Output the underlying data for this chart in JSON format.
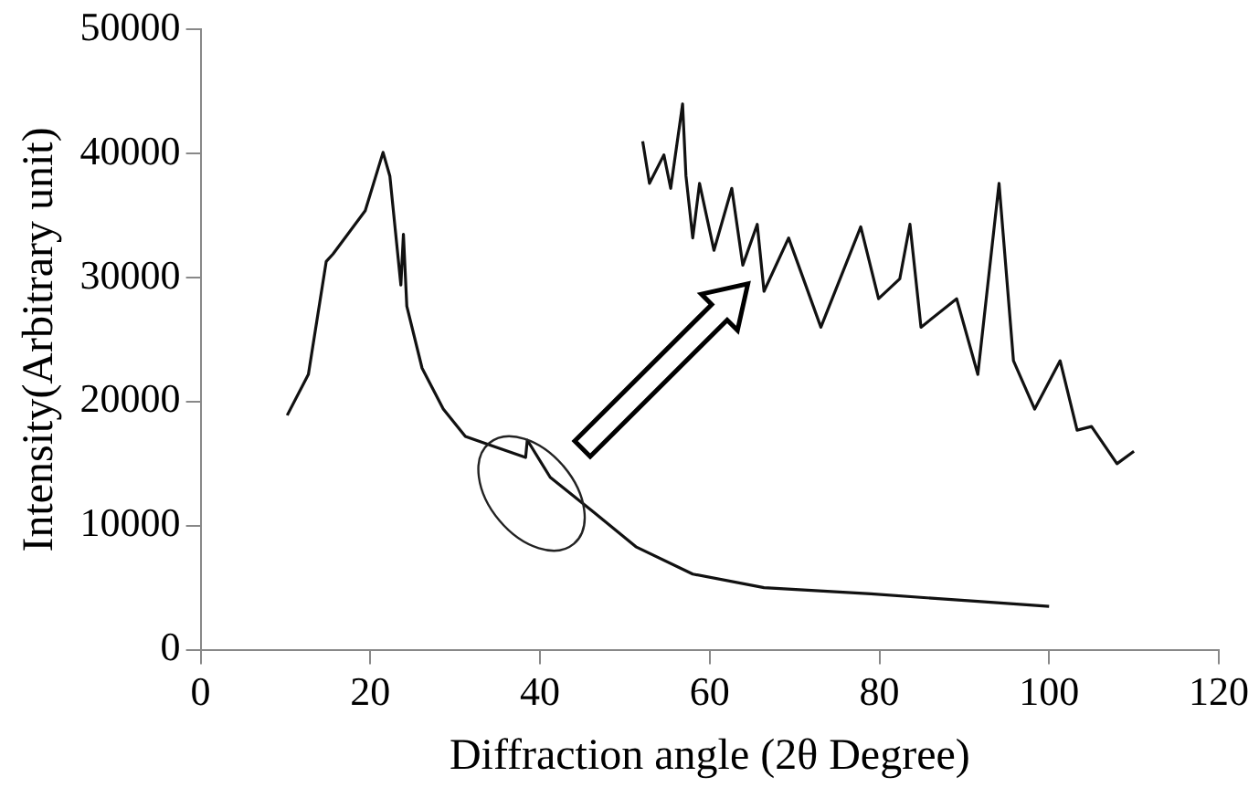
{
  "chart_data": {
    "type": "line",
    "xlabel": "Diffraction angle (2θ Degree)",
    "ylabel": "Intensity(Arbitrary unit)",
    "xlim": [
      0,
      120
    ],
    "xticks": [
      0,
      20,
      40,
      60,
      80,
      100,
      120
    ],
    "ylim": [
      0,
      50000
    ],
    "yticks": [
      0,
      10000,
      20000,
      30000,
      40000,
      50000
    ],
    "grid": false,
    "legend": false,
    "marker": "none",
    "line_style": "solid",
    "series": [
      {
        "color": "#111111",
        "x": [
          10.2,
          12.7,
          14.8,
          15.6,
          19.4,
          21.5,
          22.3,
          23.6,
          23.9,
          24.3,
          26.1,
          28.6,
          31.2,
          34.5,
          38.3,
          38.5,
          41.2,
          46.3,
          51.3,
          58.0,
          66.4,
          79.0,
          91.6,
          100
        ],
        "values": [
          18900,
          22200,
          31300,
          31900,
          35400,
          40100,
          38200,
          29400,
          33500,
          27700,
          22700,
          19400,
          17200,
          16400,
          15500,
          16900,
          13900,
          11100,
          8300,
          6100,
          5000,
          4500,
          3900,
          3500
        ]
      },
      {
        "color": "#111111",
        "x": [
          52.1,
          52.9,
          54.6,
          55.4,
          56.8,
          57.2,
          58.0,
          58.8,
          60.5,
          62.6,
          63.9,
          65.6,
          66.4,
          69.3,
          73.1,
          77.8,
          79.9,
          82.4,
          83.6,
          84.9,
          89.1,
          91.6,
          94.1,
          95.8,
          98.3,
          101.3,
          103.3,
          105,
          108,
          110
        ],
        "values": [
          41000,
          37600,
          39900,
          37200,
          44000,
          38200,
          33200,
          37600,
          32200,
          37200,
          31000,
          34300,
          28900,
          33200,
          26000,
          34100,
          28300,
          29900,
          34300,
          26000,
          28300,
          22200,
          37600,
          23300,
          19400,
          23300,
          17700,
          18000,
          15000,
          16000
        ]
      }
    ]
  }
}
